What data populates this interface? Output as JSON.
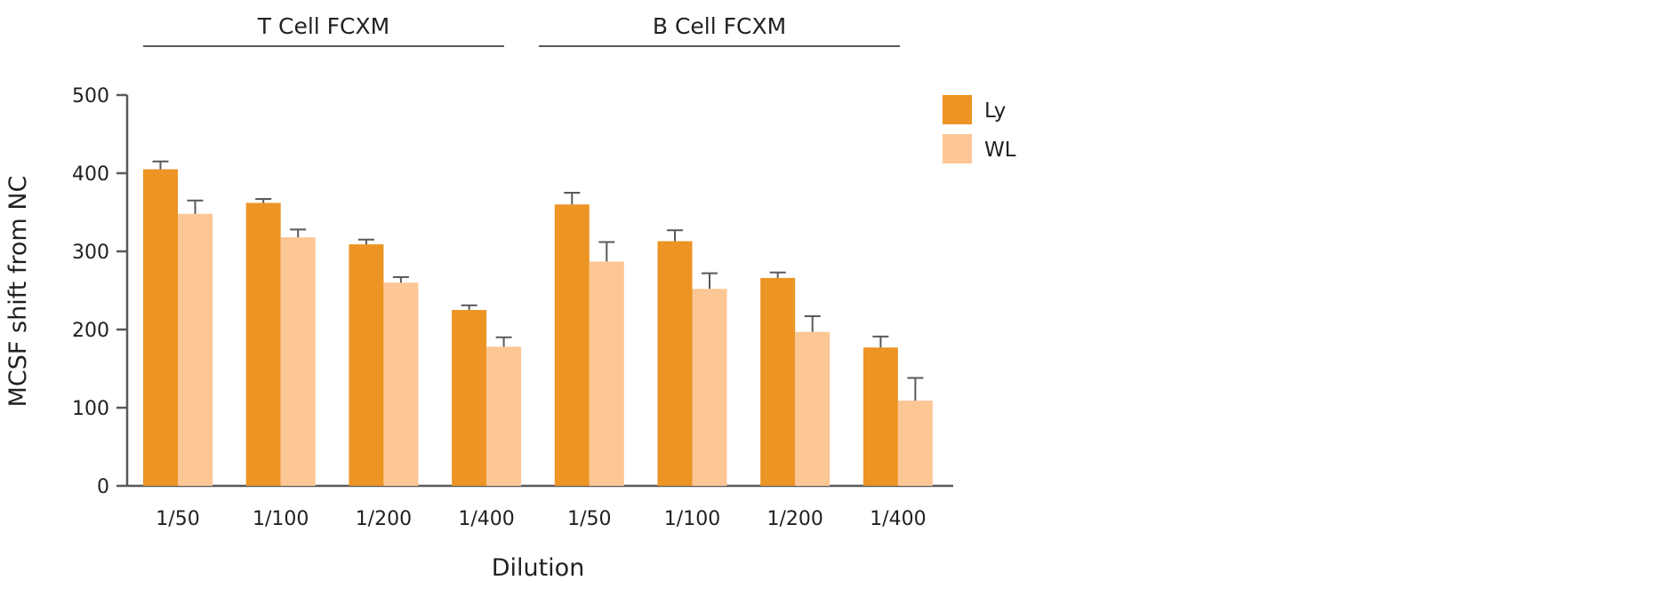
{
  "chart_data": {
    "type": "bar",
    "title": "",
    "xlabel": "Dilution",
    "ylabel": "MCSF shift from NC",
    "ylim": [
      0,
      500
    ],
    "yticks": [
      0,
      100,
      200,
      300,
      400,
      500
    ],
    "grid": false,
    "legend_position": "top-right",
    "groups": [
      {
        "label": "T Cell FCXM",
        "categories": [
          "1/50",
          "1/100",
          "1/200",
          "1/400"
        ]
      },
      {
        "label": "B Cell FCXM",
        "categories": [
          "1/50",
          "1/100",
          "1/200",
          "1/400"
        ]
      }
    ],
    "categories": [
      "1/50",
      "1/100",
      "1/200",
      "1/400",
      "1/50",
      "1/100",
      "1/200",
      "1/400"
    ],
    "series": [
      {
        "name": "Ly",
        "color": "#ec9424",
        "values": [
          405,
          362,
          309,
          225,
          360,
          313,
          266,
          177
        ],
        "errors": [
          10,
          5,
          6,
          6,
          15,
          14,
          7,
          14
        ]
      },
      {
        "name": "WL",
        "color": "#fdc695",
        "values": [
          348,
          318,
          260,
          178,
          287,
          252,
          197,
          109
        ],
        "errors": [
          17,
          10,
          7,
          12,
          25,
          20,
          20,
          29
        ]
      }
    ]
  }
}
